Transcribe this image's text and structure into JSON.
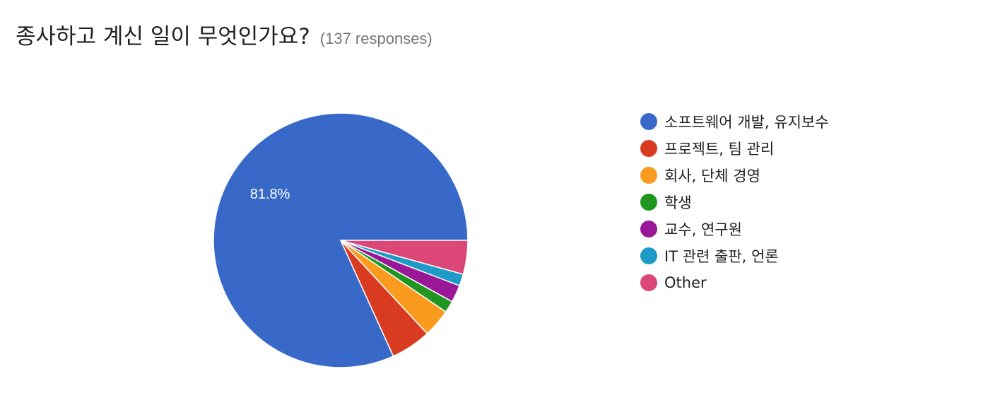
{
  "header": {
    "title": "종사하고 계신 일이 무엇인가요?",
    "responses": "(137 responses)"
  },
  "chart_data": {
    "type": "pie",
    "title": "종사하고 계신 일이 무엇인가요?",
    "total_responses": 137,
    "start": "3 o'clock, counter-clockwise",
    "legend_position": "right",
    "slices": [
      {
        "label": "소프트웨어 개발, 유지보수",
        "value": 81.8,
        "color": "#3869C9",
        "data_label": "81.8%"
      },
      {
        "label": "프로젝트, 팀 관리",
        "value": 5.1,
        "color": "#D83B20",
        "data_label": ""
      },
      {
        "label": "회사, 단체 경영",
        "value": 3.6,
        "color": "#FA9A1E",
        "data_label": ""
      },
      {
        "label": "학생",
        "value": 1.5,
        "color": "#1F9621",
        "data_label": ""
      },
      {
        "label": "교수, 연구원",
        "value": 2.2,
        "color": "#9A1898",
        "data_label": ""
      },
      {
        "label": "IT 관련 출판, 언론",
        "value": 1.5,
        "color": "#1F9BC7",
        "data_label": ""
      },
      {
        "label": "Other",
        "value": 4.3,
        "color": "#DC4778",
        "data_label": ""
      }
    ]
  }
}
